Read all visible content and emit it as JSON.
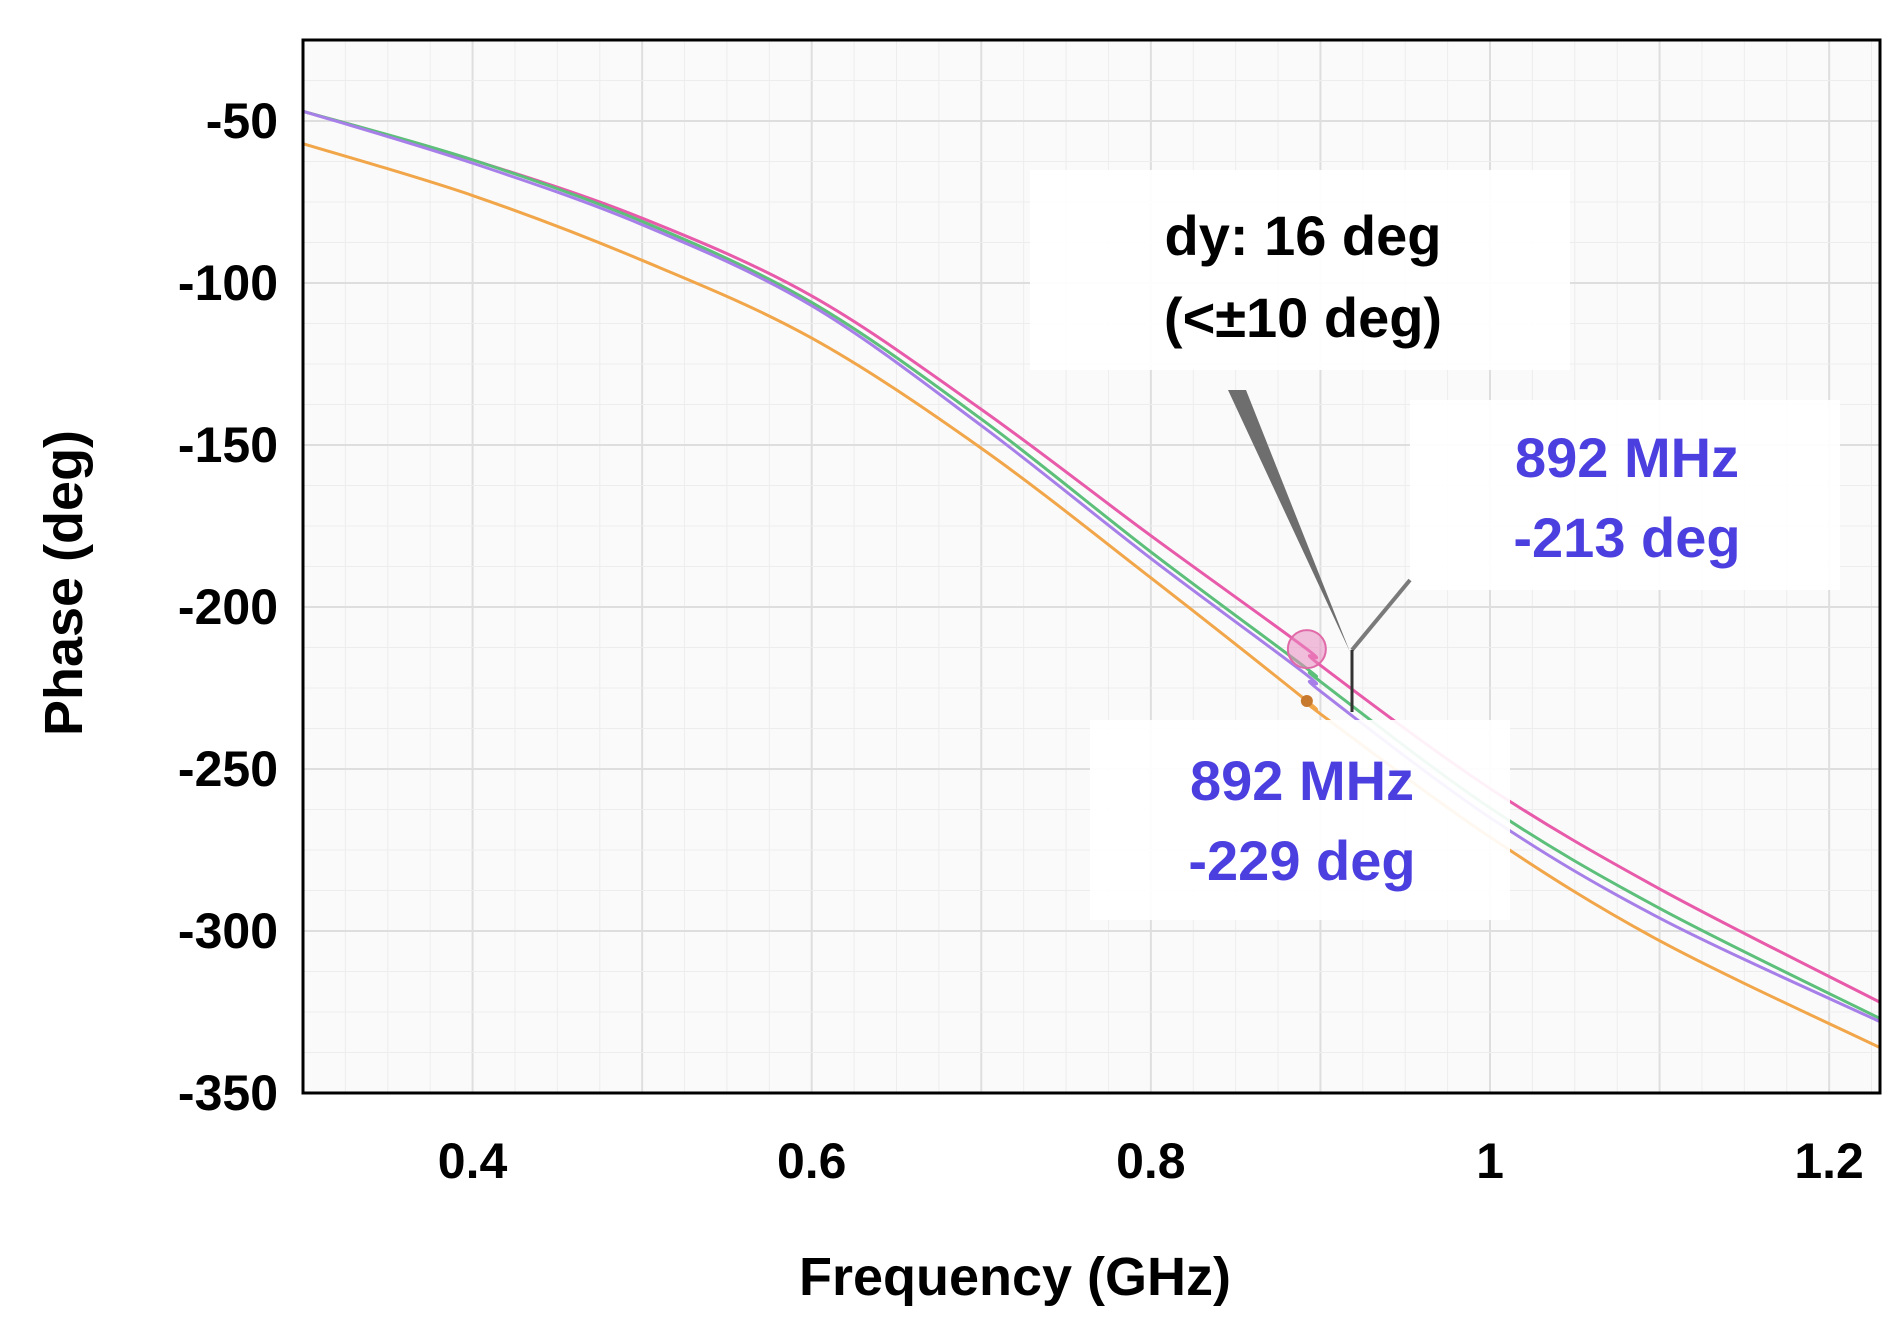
{
  "chart_data": {
    "type": "line",
    "title": "",
    "xlabel": "Frequency (GHz)",
    "ylabel": "Phase (deg)",
    "xlim": [
      0.3,
      1.23
    ],
    "ylim": [
      -350,
      -25
    ],
    "xticks": [
      0.4,
      0.6,
      0.8,
      1.0,
      1.2
    ],
    "xtick_labels": [
      "0.4",
      "0.6",
      "0.8",
      "1",
      "1.2"
    ],
    "yticks": [
      -50,
      -100,
      -150,
      -200,
      -250,
      -300,
      -350
    ],
    "ytick_labels": [
      "-50",
      "-100",
      "-150",
      "-200",
      "-250",
      "-300",
      "-350"
    ],
    "grid": true,
    "series": [
      {
        "name": "pink",
        "color": "#e85aaa",
        "x": [
          0.3,
          0.4,
          0.5,
          0.6,
          0.7,
          0.8,
          0.892,
          0.9,
          1.0,
          1.1,
          1.23
        ],
        "y": [
          -47,
          -62,
          -80,
          -104,
          -139,
          -178,
          -213,
          -218,
          -256,
          -287,
          -322
        ]
      },
      {
        "name": "green",
        "color": "#5cbf7a",
        "x": [
          0.3,
          0.4,
          0.5,
          0.6,
          0.7,
          0.8,
          0.892,
          0.9,
          1.0,
          1.1,
          1.23
        ],
        "y": [
          -47,
          -62,
          -81,
          -106,
          -142,
          -183,
          -219,
          -223,
          -262,
          -293,
          -327
        ]
      },
      {
        "name": "purple",
        "color": "#a77fe8",
        "x": [
          0.3,
          0.4,
          0.5,
          0.6,
          0.7,
          0.8,
          0.892,
          0.9,
          1.0,
          1.1,
          1.23
        ],
        "y": [
          -47,
          -63,
          -82,
          -107,
          -144,
          -185,
          -221,
          -226,
          -265,
          -296,
          -328
        ]
      },
      {
        "name": "orange",
        "color": "#f2a64a",
        "x": [
          0.3,
          0.4,
          0.5,
          0.6,
          0.7,
          0.8,
          0.892,
          0.9,
          1.0,
          1.1,
          1.23
        ],
        "y": [
          -57,
          -73,
          -93,
          -117,
          -151,
          -191,
          -229,
          -233,
          -271,
          -303,
          -336
        ]
      }
    ],
    "markers": [
      {
        "x": 0.892,
        "y": -213
      },
      {
        "x": 0.892,
        "y": -229
      }
    ],
    "annotations": {
      "dy": {
        "line1": "dy: 16 deg",
        "line2": "(<±10 deg)"
      },
      "marker1": {
        "line1": "892 MHz",
        "line2": "-213 deg"
      },
      "marker2": {
        "line1": "892 MHz",
        "line2": "-229 deg"
      }
    },
    "annotation_color": "#4b3fe0"
  }
}
